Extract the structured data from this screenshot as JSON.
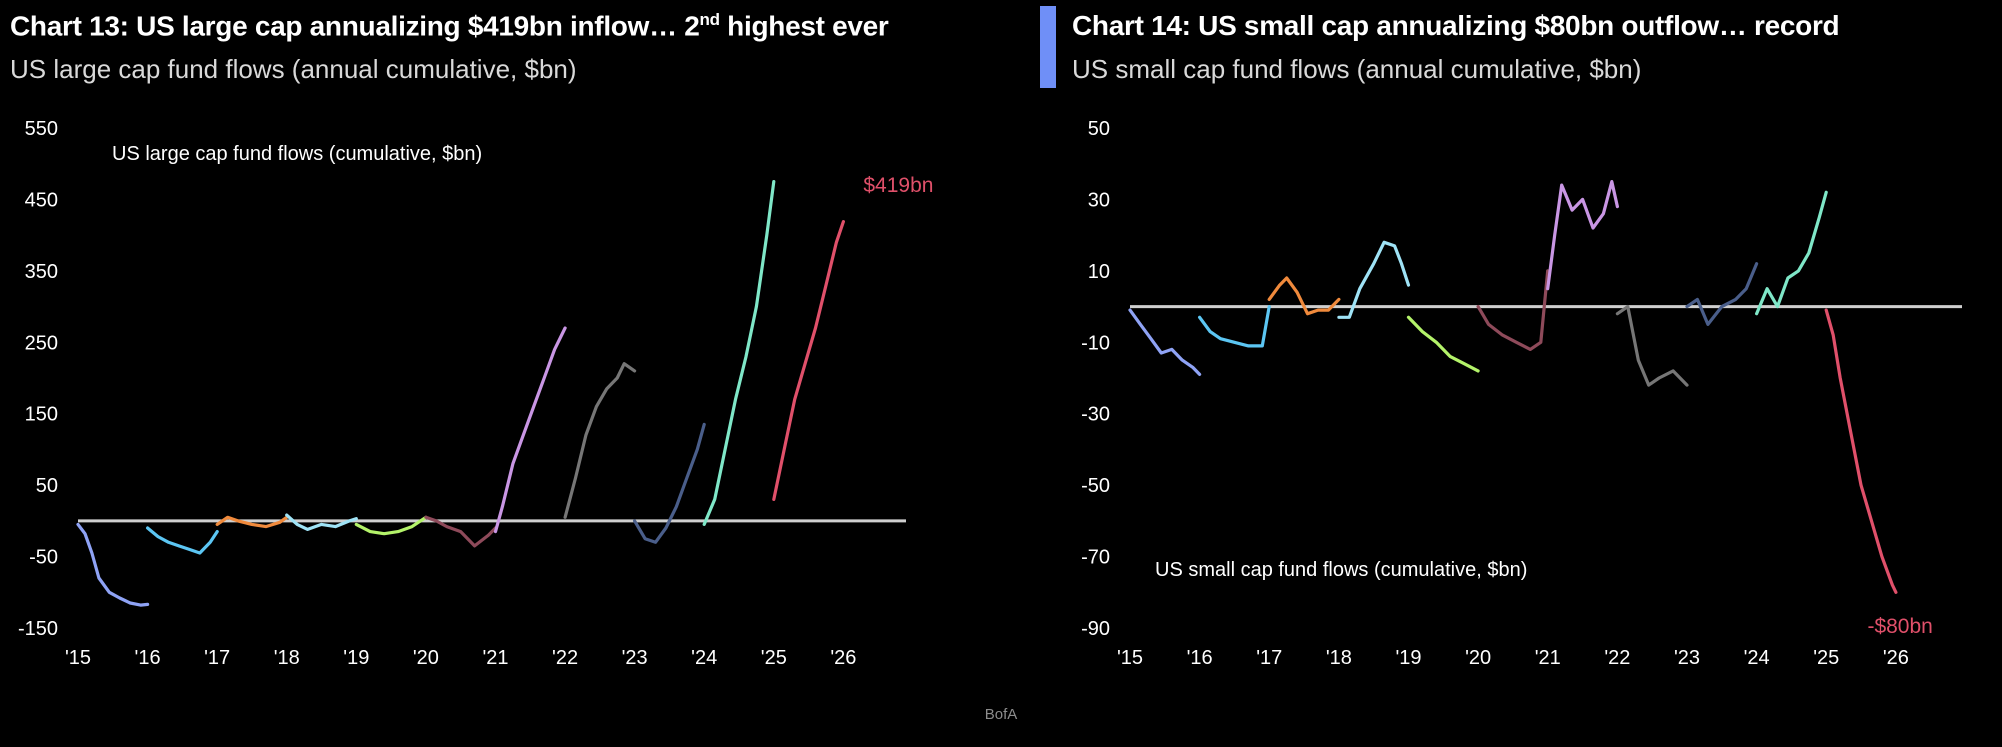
{
  "source": "BofA",
  "charts": [
    {
      "id": "left",
      "title_main": "Chart 13: US large cap annualizing $419bn inflow… 2",
      "title_sup": "nd",
      "title_tail": " highest ever",
      "subtitle": "US large cap fund flows (annual cumulative, $bn)"
    },
    {
      "id": "right",
      "title_main": "Chart 14: US small cap annualizing $80bn outflow… record",
      "subtitle": "US small cap fund flows (annual cumulative, $bn)"
    }
  ],
  "chart_data": [
    {
      "type": "line",
      "inner_label": "US large cap fund flows (cumulative, $bn)",
      "end_label": "$419bn",
      "end_label_color": "#e0506a",
      "x_ticks": [
        "'15",
        "'16",
        "'17",
        "'18",
        "'19",
        "'20",
        "'21",
        "'22",
        "'23",
        "'24",
        "'25",
        "'26"
      ],
      "y_ticks": [
        550,
        450,
        350,
        250,
        150,
        50,
        -50,
        -150
      ],
      "ylim": [
        -150,
        550
      ],
      "x_range": [
        2015,
        2026.9
      ],
      "zero_line": true,
      "series": [
        {
          "color": "#8fa3f5",
          "points": [
            [
              2015.0,
              -5
            ],
            [
              2015.1,
              -18
            ],
            [
              2015.2,
              -45
            ],
            [
              2015.3,
              -80
            ],
            [
              2015.45,
              -100
            ],
            [
              2015.6,
              -108
            ],
            [
              2015.75,
              -115
            ],
            [
              2015.9,
              -118
            ],
            [
              2016.0,
              -117
            ]
          ]
        },
        {
          "color": "#5cc6f3",
          "points": [
            [
              2016.0,
              -10
            ],
            [
              2016.15,
              -22
            ],
            [
              2016.3,
              -30
            ],
            [
              2016.45,
              -35
            ],
            [
              2016.6,
              -40
            ],
            [
              2016.75,
              -45
            ],
            [
              2016.9,
              -30
            ],
            [
              2017.0,
              -15
            ]
          ]
        },
        {
          "color": "#f08a3c",
          "points": [
            [
              2017.0,
              -5
            ],
            [
              2017.15,
              5
            ],
            [
              2017.3,
              0
            ],
            [
              2017.5,
              -5
            ],
            [
              2017.7,
              -8
            ],
            [
              2017.9,
              -2
            ],
            [
              2018.0,
              5
            ]
          ]
        },
        {
          "color": "#9fe3f6",
          "points": [
            [
              2018.0,
              8
            ],
            [
              2018.15,
              -5
            ],
            [
              2018.3,
              -12
            ],
            [
              2018.5,
              -5
            ],
            [
              2018.7,
              -8
            ],
            [
              2018.9,
              0
            ],
            [
              2019.0,
              3
            ]
          ]
        },
        {
          "color": "#b4f36a",
          "points": [
            [
              2019.0,
              -5
            ],
            [
              2019.2,
              -15
            ],
            [
              2019.4,
              -18
            ],
            [
              2019.6,
              -15
            ],
            [
              2019.8,
              -8
            ],
            [
              2020.0,
              5
            ]
          ]
        },
        {
          "color": "#8e4a5a",
          "points": [
            [
              2020.0,
              5
            ],
            [
              2020.15,
              0
            ],
            [
              2020.3,
              -8
            ],
            [
              2020.5,
              -15
            ],
            [
              2020.7,
              -35
            ],
            [
              2020.9,
              -20
            ],
            [
              2021.0,
              -10
            ]
          ]
        },
        {
          "color": "#c996e4",
          "points": [
            [
              2021.0,
              -15
            ],
            [
              2021.1,
              20
            ],
            [
              2021.25,
              80
            ],
            [
              2021.4,
              120
            ],
            [
              2021.55,
              160
            ],
            [
              2021.7,
              200
            ],
            [
              2021.85,
              240
            ],
            [
              2022.0,
              270
            ]
          ]
        },
        {
          "color": "#767676",
          "points": [
            [
              2022.0,
              5
            ],
            [
              2022.15,
              60
            ],
            [
              2022.3,
              120
            ],
            [
              2022.45,
              160
            ],
            [
              2022.6,
              185
            ],
            [
              2022.75,
              200
            ],
            [
              2022.85,
              220
            ],
            [
              2023.0,
              210
            ]
          ]
        },
        {
          "color": "#4a5e8a",
          "points": [
            [
              2023.0,
              0
            ],
            [
              2023.15,
              -25
            ],
            [
              2023.3,
              -30
            ],
            [
              2023.45,
              -10
            ],
            [
              2023.6,
              20
            ],
            [
              2023.75,
              60
            ],
            [
              2023.9,
              100
            ],
            [
              2024.0,
              135
            ]
          ]
        },
        {
          "color": "#7fe7c8",
          "points": [
            [
              2024.0,
              -5
            ],
            [
              2024.15,
              30
            ],
            [
              2024.3,
              100
            ],
            [
              2024.45,
              170
            ],
            [
              2024.6,
              230
            ],
            [
              2024.75,
              300
            ],
            [
              2024.9,
              400
            ],
            [
              2025.0,
              475
            ]
          ]
        },
        {
          "color": "#e0506a",
          "points": [
            [
              2025.0,
              30
            ],
            [
              2025.15,
              100
            ],
            [
              2025.3,
              170
            ],
            [
              2025.45,
              220
            ],
            [
              2025.6,
              270
            ],
            [
              2025.75,
              330
            ],
            [
              2025.9,
              390
            ],
            [
              2026.0,
              419
            ]
          ]
        }
      ]
    },
    {
      "type": "line",
      "inner_label": "US small cap fund flows (cumulative, $bn)",
      "end_label": "-$80bn",
      "end_label_color": "#e0506a",
      "x_ticks": [
        "'15",
        "'16",
        "'17",
        "'18",
        "'19",
        "'20",
        "'21",
        "'22",
        "'23",
        "'24",
        "'25",
        "'26"
      ],
      "y_ticks": [
        50,
        30,
        10,
        -10,
        -30,
        -50,
        -70,
        -90
      ],
      "ylim": [
        -90,
        50
      ],
      "x_range": [
        2015,
        2026.95
      ],
      "zero_line": true,
      "series": [
        {
          "color": "#8fa3f5",
          "points": [
            [
              2015.0,
              -1
            ],
            [
              2015.15,
              -5
            ],
            [
              2015.3,
              -9
            ],
            [
              2015.45,
              -13
            ],
            [
              2015.6,
              -12
            ],
            [
              2015.75,
              -15
            ],
            [
              2015.9,
              -17
            ],
            [
              2016.0,
              -19
            ]
          ]
        },
        {
          "color": "#5cc6f3",
          "points": [
            [
              2016.0,
              -3
            ],
            [
              2016.15,
              -7
            ],
            [
              2016.3,
              -9
            ],
            [
              2016.5,
              -10
            ],
            [
              2016.7,
              -11
            ],
            [
              2016.9,
              -11
            ],
            [
              2017.0,
              0
            ]
          ]
        },
        {
          "color": "#f08a3c",
          "points": [
            [
              2017.0,
              2
            ],
            [
              2017.15,
              6
            ],
            [
              2017.25,
              8
            ],
            [
              2017.4,
              4
            ],
            [
              2017.55,
              -2
            ],
            [
              2017.7,
              -1
            ],
            [
              2017.85,
              -1
            ],
            [
              2018.0,
              2
            ]
          ]
        },
        {
          "color": "#9fe3f6",
          "points": [
            [
              2018.0,
              -3
            ],
            [
              2018.15,
              -3
            ],
            [
              2018.3,
              5
            ],
            [
              2018.5,
              12
            ],
            [
              2018.65,
              18
            ],
            [
              2018.8,
              17
            ],
            [
              2018.9,
              12
            ],
            [
              2019.0,
              6
            ]
          ]
        },
        {
          "color": "#b4f36a",
          "points": [
            [
              2019.0,
              -3
            ],
            [
              2019.2,
              -7
            ],
            [
              2019.4,
              -10
            ],
            [
              2019.6,
              -14
            ],
            [
              2019.8,
              -16
            ],
            [
              2020.0,
              -18
            ]
          ]
        },
        {
          "color": "#8e4a5a",
          "points": [
            [
              2020.0,
              0
            ],
            [
              2020.15,
              -5
            ],
            [
              2020.35,
              -8
            ],
            [
              2020.55,
              -10
            ],
            [
              2020.75,
              -12
            ],
            [
              2020.9,
              -10
            ],
            [
              2021.0,
              10
            ]
          ]
        },
        {
          "color": "#c996e4",
          "points": [
            [
              2021.0,
              5
            ],
            [
              2021.1,
              20
            ],
            [
              2021.2,
              34
            ],
            [
              2021.35,
              27
            ],
            [
              2021.5,
              30
            ],
            [
              2021.65,
              22
            ],
            [
              2021.8,
              26
            ],
            [
              2021.92,
              35
            ],
            [
              2022.0,
              28
            ]
          ]
        },
        {
          "color": "#767676",
          "points": [
            [
              2022.0,
              -2
            ],
            [
              2022.15,
              0
            ],
            [
              2022.3,
              -15
            ],
            [
              2022.45,
              -22
            ],
            [
              2022.6,
              -20
            ],
            [
              2022.8,
              -18
            ],
            [
              2023.0,
              -22
            ]
          ]
        },
        {
          "color": "#4a5e8a",
          "points": [
            [
              2023.0,
              0
            ],
            [
              2023.15,
              2
            ],
            [
              2023.3,
              -5
            ],
            [
              2023.5,
              0
            ],
            [
              2023.7,
              2
            ],
            [
              2023.85,
              5
            ],
            [
              2024.0,
              12
            ]
          ]
        },
        {
          "color": "#7fe7c8",
          "points": [
            [
              2024.0,
              -2
            ],
            [
              2024.15,
              5
            ],
            [
              2024.3,
              0
            ],
            [
              2024.45,
              8
            ],
            [
              2024.6,
              10
            ],
            [
              2024.75,
              15
            ],
            [
              2024.9,
              25
            ],
            [
              2025.0,
              32
            ]
          ]
        },
        {
          "color": "#e0506a",
          "points": [
            [
              2025.0,
              -1
            ],
            [
              2025.1,
              -8
            ],
            [
              2025.2,
              -20
            ],
            [
              2025.35,
              -35
            ],
            [
              2025.5,
              -50
            ],
            [
              2025.65,
              -60
            ],
            [
              2025.8,
              -70
            ],
            [
              2025.95,
              -78
            ],
            [
              2026.0,
              -80
            ]
          ]
        }
      ]
    }
  ]
}
